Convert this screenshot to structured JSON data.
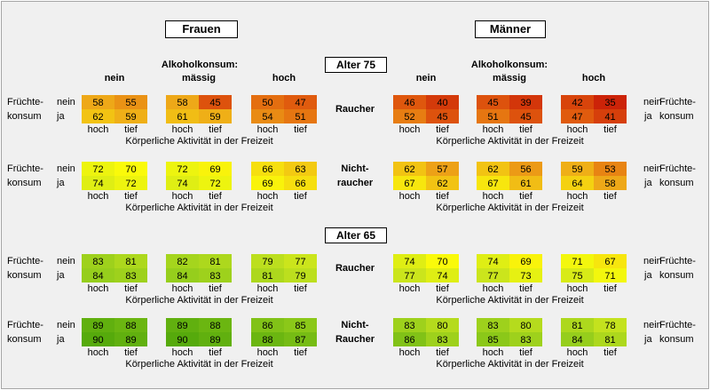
{
  "chart_data": {
    "type": "heatmap",
    "headers": {
      "left": "Frauen",
      "right": "Männer"
    },
    "alcohol_label": "Alkoholkonsum:",
    "alcohol_levels": [
      "nein",
      "mässig",
      "hoch"
    ],
    "fruit_label": [
      "Früchte-",
      "konsum"
    ],
    "fruit_levels": [
      "nein",
      "ja"
    ],
    "activity_levels": [
      "hoch",
      "tief"
    ],
    "activity_label": "Körperliche Aktivität in der Freizeit",
    "groups": [
      {
        "age": "Alter 75",
        "rows": [
          {
            "smoker": [
              "Raucher"
            ],
            "frauen": [
              [
                [
                  58,
                  55
                ],
                [
                  62,
                  59
                ]
              ],
              [
                [
                  58,
                  45
                ],
                [
                  61,
                  59
                ]
              ],
              [
                [
                  50,
                  47
                ],
                [
                  54,
                  51
                ]
              ]
            ],
            "maenner": [
              [
                [
                  46,
                  40
                ],
                [
                  52,
                  45
                ]
              ],
              [
                [
                  45,
                  39
                ],
                [
                  51,
                  45
                ]
              ],
              [
                [
                  42,
                  35
                ],
                [
                  47,
                  41
                ]
              ]
            ]
          },
          {
            "smoker": [
              "Nicht-",
              "raucher"
            ],
            "frauen": [
              [
                [
                  72,
                  70
                ],
                [
                  74,
                  72
                ]
              ],
              [
                [
                  72,
                  69
                ],
                [
                  74,
                  72
                ]
              ],
              [
                [
                  66,
                  63
                ],
                [
                  69,
                  66
                ]
              ]
            ],
            "maenner": [
              [
                [
                  62,
                  57
                ],
                [
                  67,
                  62
                ]
              ],
              [
                [
                  62,
                  56
                ],
                [
                  67,
                  61
                ]
              ],
              [
                [
                  59,
                  53
                ],
                [
                  64,
                  58
                ]
              ]
            ]
          }
        ]
      },
      {
        "age": "Alter 65",
        "rows": [
          {
            "smoker": [
              "Raucher"
            ],
            "frauen": [
              [
                [
                  83,
                  81
                ],
                [
                  84,
                  83
                ]
              ],
              [
                [
                  82,
                  81
                ],
                [
                  84,
                  83
                ]
              ],
              [
                [
                  79,
                  77
                ],
                [
                  81,
                  79
                ]
              ]
            ],
            "maenner": [
              [
                [
                  74,
                  70
                ],
                [
                  77,
                  74
                ]
              ],
              [
                [
                  74,
                  69
                ],
                [
                  77,
                  73
                ]
              ],
              [
                [
                  71,
                  67
                ],
                [
                  75,
                  71
                ]
              ]
            ]
          },
          {
            "smoker": [
              "Nicht-",
              "Raucher"
            ],
            "frauen": [
              [
                [
                  89,
                  88
                ],
                [
                  90,
                  89
                ]
              ],
              [
                [
                  89,
                  88
                ],
                [
                  90,
                  89
                ]
              ],
              [
                [
                  86,
                  85
                ],
                [
                  88,
                  87
                ]
              ]
            ],
            "maenner": [
              [
                [
                  83,
                  80
                ],
                [
                  86,
                  83
                ]
              ],
              [
                [
                  83,
                  80
                ],
                [
                  85,
                  83
                ]
              ],
              [
                [
                  81,
                  78
                ],
                [
                  84,
                  81
                ]
              ]
            ]
          }
        ]
      }
    ]
  }
}
